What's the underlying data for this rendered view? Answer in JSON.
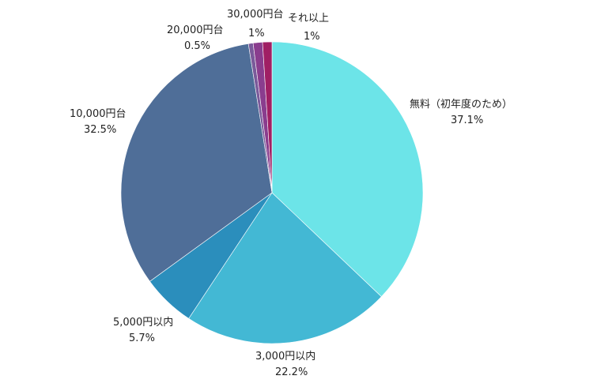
{
  "chart_data": {
    "type": "pie",
    "title": "",
    "slices": [
      {
        "label": "無料（初年度のため）",
        "value": 37.1,
        "value_label": "37.1%",
        "color": "#6ce4e8"
      },
      {
        "label": "3,000円以内",
        "value": 22.2,
        "value_label": "22.2%",
        "color": "#43b8d4"
      },
      {
        "label": "5,000円以内",
        "value": 5.7,
        "value_label": "5.7%",
        "color": "#2b8ebc"
      },
      {
        "label": "10,000円台",
        "value": 32.5,
        "value_label": "32.5%",
        "color": "#4f6e98"
      },
      {
        "label": "20,000円台",
        "value": 0.5,
        "value_label": "0.5%",
        "color": "#7a5a9a"
      },
      {
        "label": "30,000円台",
        "value": 1,
        "value_label": "1%",
        "color": "#8a3d8e"
      },
      {
        "label": "それ以上",
        "value": 1,
        "value_label": "1%",
        "color": "#a01f64"
      }
    ]
  }
}
